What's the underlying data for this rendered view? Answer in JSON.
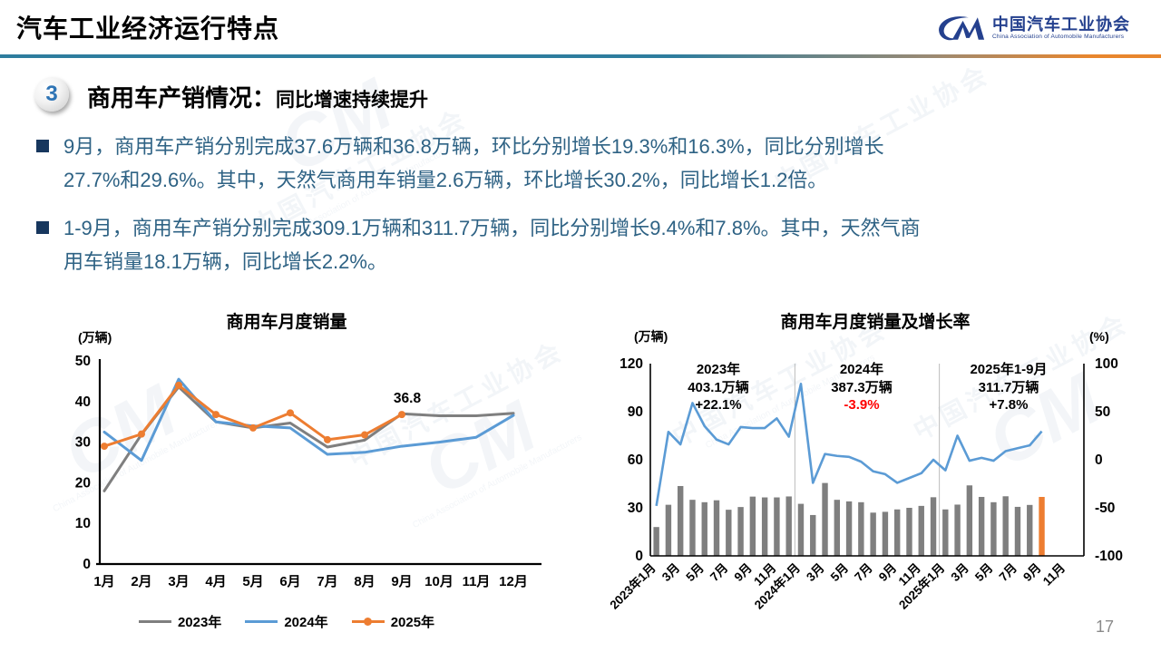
{
  "header": {
    "title": "汽车工业经济运行特点",
    "logo": {
      "org_cn": "中国汽车工业协会",
      "org_en": "China Association of Automobile Manufacturers"
    }
  },
  "section": {
    "number": "3",
    "title": "商用车产销情况：",
    "subtitle": "同比增速持续提升"
  },
  "bullets": [
    {
      "lines": [
        "9月，商用车产销分别完成37.6万辆和36.8万辆，环比分别增长19.3%和16.3%，同比分别增长",
        "27.7%和29.6%。其中，天然气商用车销量2.6万辆，环比增长30.2%，同比增长1.2倍。"
      ]
    },
    {
      "lines": [
        "1-9月，商用车产销分别完成309.1万辆和311.7万辆，同比分别增长9.4%和7.8%。其中，天然气商",
        "用车销量18.1万辆，同比增长2.2%。"
      ]
    }
  ],
  "watermark": {
    "mark": "CM",
    "text_cn": "中国汽车工业协会",
    "text_en": "China Association of Automobile Manufacturers"
  },
  "page_number": "17",
  "chart_data": [
    {
      "type": "line",
      "title": "商用车月度销量",
      "unit_label": "(万辆)",
      "categories": [
        "1月",
        "2月",
        "3月",
        "4月",
        "5月",
        "6月",
        "7月",
        "8月",
        "9月",
        "10月",
        "11月",
        "12月"
      ],
      "ylim": [
        0,
        50
      ],
      "yticks": [
        0,
        10,
        20,
        30,
        40,
        50
      ],
      "legend_position": "bottom",
      "grid": false,
      "series": [
        {
          "name": "2023年",
          "color": "#7F7F7F",
          "marker": false,
          "values": [
            18,
            31.9,
            43.6,
            35,
            33.5,
            34.7,
            28.8,
            30.5,
            37,
            36.5,
            36.5,
            37.1
          ]
        },
        {
          "name": "2024年",
          "color": "#5B9BD5",
          "marker": false,
          "values": [
            32.5,
            25.5,
            45.5,
            35,
            34,
            33.5,
            27,
            27.5,
            29,
            30,
            31.2,
            36.6
          ]
        },
        {
          "name": "2025年",
          "color": "#ED7D31",
          "marker": true,
          "values": [
            29,
            32,
            44,
            36.8,
            33.5,
            37.2,
            30.6,
            31.8,
            36.8
          ]
        }
      ],
      "annotation": {
        "text": "36.8",
        "series_index": 2,
        "month_index": 8
      }
    },
    {
      "type": "bar+line",
      "title": "商用车月度销量及增长率",
      "left_unit_label": "(万辆)",
      "right_unit_label": "(%)",
      "left_ylim": [
        0,
        120
      ],
      "left_yticks": [
        0,
        30,
        60,
        90,
        120
      ],
      "right_ylim": [
        -100,
        100
      ],
      "right_yticks": [
        -100,
        -50,
        0,
        50,
        100
      ],
      "total_slots": 36,
      "x_tick_labels": [
        "2023年1月",
        "3月",
        "5月",
        "7月",
        "9月",
        "11月",
        "2024年1月",
        "3月",
        "5月",
        "7月",
        "9月",
        "11月",
        "2025年1月",
        "3月",
        "5月",
        "7月",
        "9月",
        "11月"
      ],
      "bars": {
        "name": "月度销量(万辆)",
        "color": "#7F7F7F",
        "last_bar_color": "#ED7D31",
        "values": [
          18,
          31.9,
          43.6,
          35,
          33.5,
          34.7,
          28.8,
          30.5,
          37,
          36.5,
          36.5,
          37.1,
          32.5,
          25.5,
          45.5,
          35,
          34,
          33.5,
          27,
          27.5,
          29,
          30,
          31.2,
          36.6,
          29,
          32,
          44,
          36.8,
          33.5,
          37.2,
          30.6,
          31.8,
          36.8
        ]
      },
      "line": {
        "name": "同比增长率(%)",
        "color": "#5B9BD5",
        "values": [
          -48,
          29,
          16,
          59,
          35,
          21,
          16,
          34,
          33,
          33,
          43,
          24,
          79,
          -24,
          6,
          4,
          3,
          -2,
          -12,
          -15,
          -24,
          -19,
          -14,
          0,
          -11,
          25,
          -1,
          2,
          -1,
          9,
          12,
          15,
          29.6
        ]
      },
      "divider_after_slots": [
        12,
        24
      ],
      "annotations": [
        {
          "line1": "2023年",
          "line2": "403.1万辆",
          "line3": "+22.1%",
          "line3_color": "#000000"
        },
        {
          "line1": "2024年",
          "line2": "387.3万辆",
          "line3": "-3.9%",
          "line3_color": "#FF0000"
        },
        {
          "line1": "2025年1-9月",
          "line2": "311.7万辆",
          "line3": "+7.8%",
          "line3_color": "#000000"
        }
      ]
    }
  ]
}
